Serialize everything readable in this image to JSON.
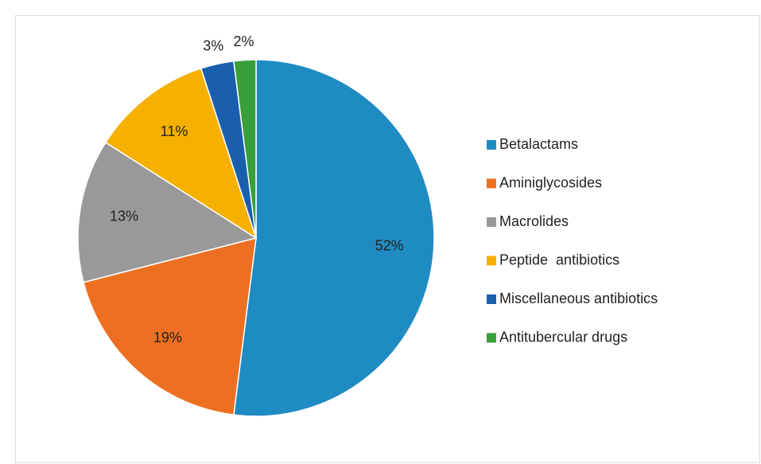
{
  "chart_data": {
    "type": "pie",
    "categories": [
      "Betalactams",
      "Aminiglycosides",
      "Macrolides",
      "Peptide  antibiotics",
      "Miscellaneous antibiotics",
      "Antitubercular drugs"
    ],
    "values": [
      52,
      19,
      13,
      11,
      3,
      2
    ],
    "value_labels": [
      "52%",
      "19%",
      "13%",
      "11%",
      "3%",
      "2%"
    ],
    "colors": [
      "#1f8bc3",
      "#ed7022",
      "#999999",
      "#f5b000",
      "#1a5fad",
      "#3a9e3a"
    ],
    "legend": "right"
  }
}
